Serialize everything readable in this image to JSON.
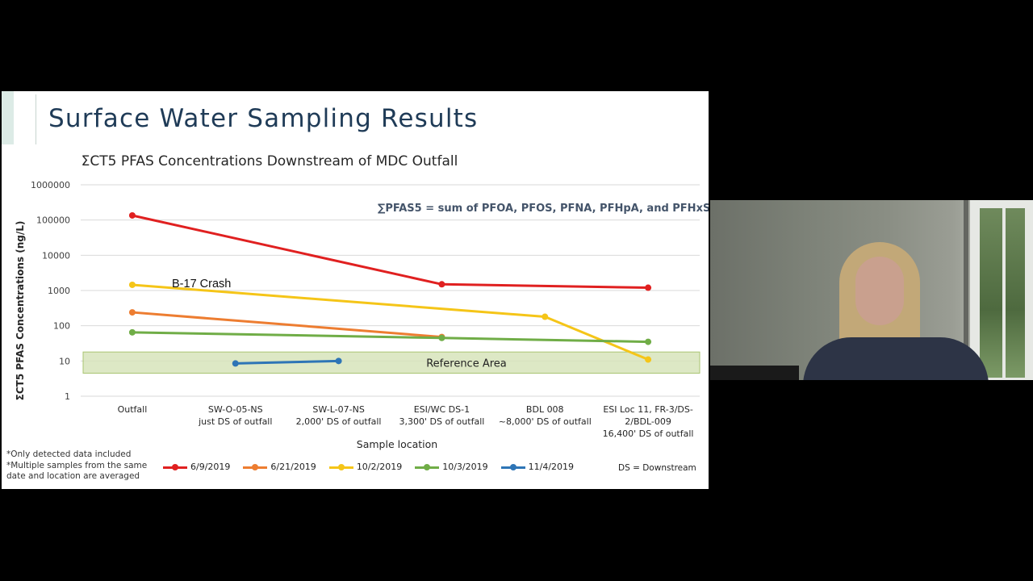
{
  "slide": {
    "title": "Surface Water Sampling Results",
    "notes": [
      "*Only detected data included",
      "*Multiple samples from the same date and location are averaged"
    ],
    "ds_note": "DS = Downstream"
  },
  "chart_data": {
    "type": "line",
    "title": "ΣCT5 PFAS Concentrations Downstream of MDC Outfall",
    "xlabel": "Sample location",
    "ylabel": "ΣCT5 PFAS Concentrations (ng/L)",
    "yscale": "log",
    "ylim": [
      1,
      1000000
    ],
    "yticks": [
      "1",
      "10",
      "100",
      "1000",
      "10000",
      "100000",
      "1000000"
    ],
    "categories": [
      [
        "Outfall"
      ],
      [
        "SW-O-05-NS",
        "just DS of outfall"
      ],
      [
        "SW-L-07-NS",
        "2,000' DS of outfall"
      ],
      [
        "ESI/WC DS-1",
        "3,300' DS of outfall"
      ],
      [
        "BDL 008",
        "~8,000' DS of outfall"
      ],
      [
        "ESI Loc 11, FR-3/DS-",
        "2/BDL-009",
        "16,400' DS of outfall"
      ]
    ],
    "series": [
      {
        "name": "6/9/2019",
        "color": "#e02020",
        "values": [
          135000,
          null,
          null,
          1500,
          null,
          1200
        ]
      },
      {
        "name": "6/21/2019",
        "color": "#ed7d31",
        "values": [
          240,
          null,
          null,
          48,
          null,
          null
        ]
      },
      {
        "name": "10/2/2019",
        "color": "#f5c518",
        "values": [
          1450,
          null,
          null,
          null,
          180,
          11
        ]
      },
      {
        "name": "10/3/2019",
        "color": "#70ad47",
        "values": [
          65,
          null,
          null,
          45,
          null,
          35
        ]
      },
      {
        "name": "11/4/2019",
        "color": "#2e75b6",
        "values": [
          null,
          8.5,
          10,
          null,
          null,
          null
        ]
      }
    ],
    "annotations": {
      "formula": "∑PFAS5 = sum of PFOA, PFOS, PFNA, PFHpA, and PFHxS",
      "event": "B-17 Crash",
      "reference_area": "Reference Area"
    },
    "grid": true,
    "legend": "bottom"
  }
}
